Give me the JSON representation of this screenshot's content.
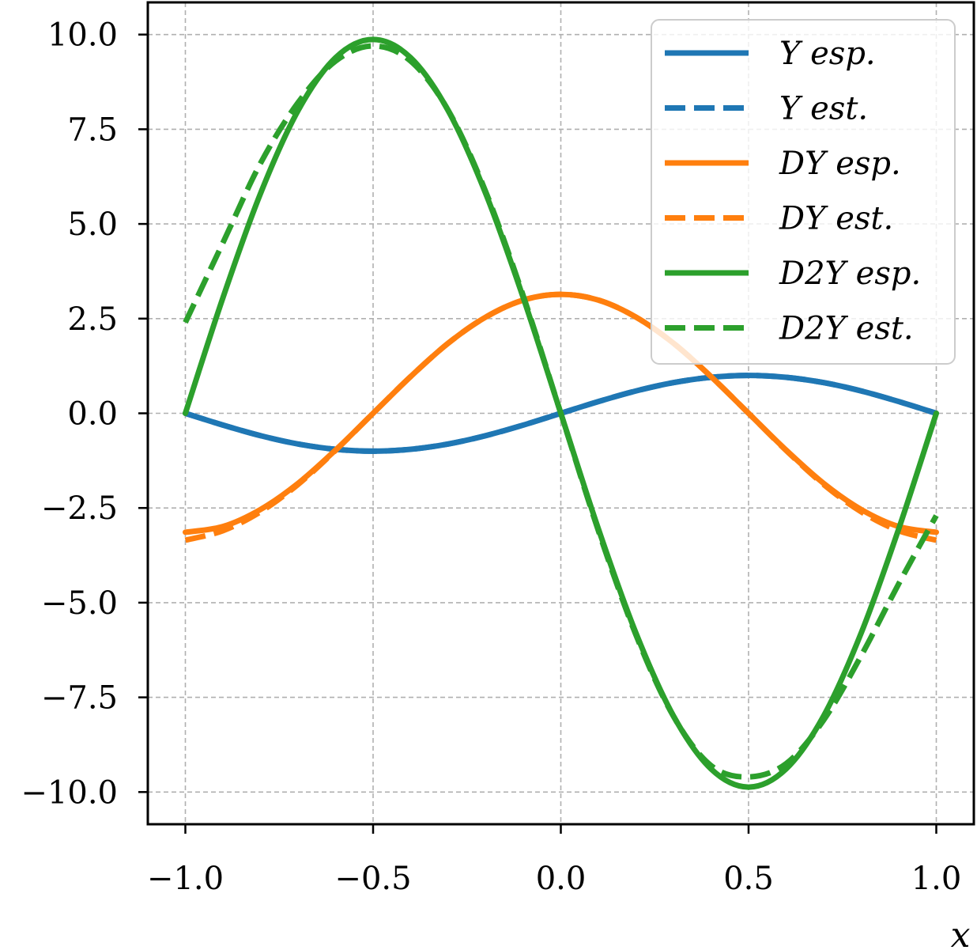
{
  "chart_data": {
    "type": "line",
    "title": "",
    "xlabel": "x",
    "ylabel": "",
    "xlim": [
      -1.1,
      1.1
    ],
    "ylim": [
      -10.85,
      10.85
    ],
    "x_ticks": [
      -1.0,
      -0.5,
      0.0,
      0.5,
      1.0
    ],
    "x_tick_labels": [
      "−1.0",
      "−0.5",
      "0.0",
      "0.5",
      "1.0"
    ],
    "y_ticks": [
      10.0,
      7.5,
      5.0,
      2.5,
      0.0,
      -2.5,
      -5.0,
      -7.5,
      -10.0
    ],
    "y_tick_labels": [
      "10.0",
      "7.5",
      "5.0",
      "2.5",
      "0.0",
      "−2.5",
      "−5.0",
      "−7.5",
      "−10.0"
    ],
    "grid": true,
    "legend_position": "top-right",
    "colors": {
      "blue": "#1f77b4",
      "orange": "#ff7f0e",
      "green": "#2ca02c"
    },
    "x": [
      -1.0,
      -0.9,
      -0.8,
      -0.7,
      -0.6,
      -0.5,
      -0.4,
      -0.3,
      -0.2,
      -0.1,
      0.0,
      0.1,
      0.2,
      0.3,
      0.4,
      0.5,
      0.6,
      0.7,
      0.8,
      0.9,
      1.0
    ],
    "series": [
      {
        "name": "Y esp.",
        "color": "#1f77b4",
        "dashed": false,
        "values": [
          0.0,
          -0.31,
          -0.59,
          -0.81,
          -0.95,
          -1.0,
          -0.95,
          -0.81,
          -0.59,
          -0.31,
          0.0,
          0.31,
          0.59,
          0.81,
          0.95,
          1.0,
          0.95,
          0.81,
          0.59,
          0.31,
          0.0
        ]
      },
      {
        "name": "Y est.",
        "color": "#1f77b4",
        "dashed": true,
        "values": [
          0.0,
          -0.31,
          -0.59,
          -0.81,
          -0.95,
          -1.0,
          -0.95,
          -0.81,
          -0.59,
          -0.31,
          0.0,
          0.31,
          0.59,
          0.81,
          0.95,
          1.0,
          0.95,
          0.81,
          0.59,
          0.31,
          0.0
        ]
      },
      {
        "name": "DY esp.",
        "color": "#ff7f0e",
        "dashed": false,
        "values": [
          -3.14,
          -2.99,
          -2.54,
          -1.85,
          -0.97,
          0.0,
          0.97,
          1.85,
          2.54,
          2.99,
          3.14,
          2.99,
          2.54,
          1.85,
          0.97,
          0.0,
          -0.97,
          -1.85,
          -2.54,
          -2.99,
          -3.14
        ]
      },
      {
        "name": "DY est.",
        "color": "#ff7f0e",
        "dashed": true,
        "values": [
          -3.35,
          -3.1,
          -2.6,
          -1.88,
          -0.98,
          0.0,
          0.97,
          1.85,
          2.54,
          2.99,
          3.14,
          2.99,
          2.54,
          1.85,
          0.97,
          0.0,
          -0.98,
          -1.88,
          -2.6,
          -3.1,
          -3.35
        ]
      },
      {
        "name": "D2Y esp.",
        "color": "#2ca02c",
        "dashed": false,
        "values": [
          0.0,
          3.05,
          5.8,
          7.99,
          9.39,
          9.87,
          9.39,
          7.99,
          5.8,
          3.05,
          0.0,
          -3.05,
          -5.8,
          -7.99,
          -9.39,
          -9.87,
          -9.39,
          -7.99,
          -5.8,
          -3.05,
          0.0
        ]
      },
      {
        "name": "D2Y est.",
        "color": "#2ca02c",
        "dashed": true,
        "values": [
          2.4,
          4.5,
          6.6,
          8.2,
          9.3,
          9.7,
          9.3,
          8.0,
          5.85,
          3.1,
          0.0,
          -3.1,
          -5.85,
          -8.0,
          -9.3,
          -9.6,
          -9.25,
          -8.1,
          -6.4,
          -4.5,
          -2.7
        ]
      }
    ],
    "legend": [
      {
        "label": "Y esp.",
        "color": "#1f77b4",
        "dashed": false
      },
      {
        "label": "Y est.",
        "color": "#1f77b4",
        "dashed": true
      },
      {
        "label": "DY esp.",
        "color": "#ff7f0e",
        "dashed": false
      },
      {
        "label": "DY est.",
        "color": "#ff7f0e",
        "dashed": true
      },
      {
        "label": "D2Y esp.",
        "color": "#2ca02c",
        "dashed": false
      },
      {
        "label": "D2Y est.",
        "color": "#2ca02c",
        "dashed": true
      }
    ]
  }
}
